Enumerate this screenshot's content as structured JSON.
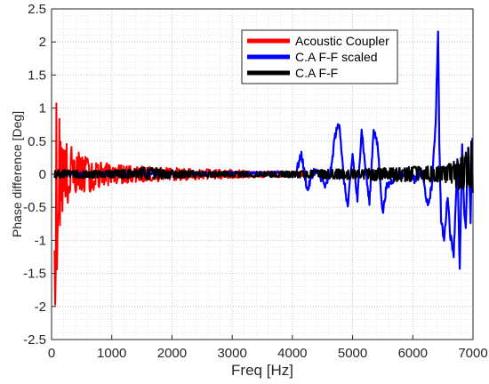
{
  "chart_data": {
    "type": "line",
    "title": "",
    "xlabel": "Freq [Hz]",
    "ylabel": "Phase difference [Deg]",
    "xlim": [
      0,
      7000
    ],
    "ylim": [
      -2.5,
      2.5
    ],
    "x_ticks": [
      0,
      1000,
      2000,
      3000,
      4000,
      5000,
      6000,
      7000
    ],
    "x_tick_labels": [
      "0",
      "1000",
      "2000",
      "3000",
      "4000",
      "5000",
      "6000",
      "7000"
    ],
    "y_ticks": [
      2.5,
      2,
      1.5,
      1,
      0.5,
      0,
      -0.5,
      -1,
      -1.5,
      -2,
      -2.5
    ],
    "y_tick_labels": [
      "2.5",
      "2",
      "1.5",
      "1",
      "0.5",
      "0",
      "-0.5",
      "-1",
      "-1.5",
      "-2",
      "-2.5"
    ],
    "grid": "major and minor, dotted",
    "legend_position": "top-right",
    "series": [
      {
        "name": "Acoustic Coupler",
        "color": "#ff0000",
        "envelope": [
          {
            "x": 50,
            "high": 0.95,
            "low": -2.1
          },
          {
            "x": 100,
            "high": 1.3,
            "low": -1.5
          },
          {
            "x": 150,
            "high": 0.75,
            "low": -0.7
          },
          {
            "x": 200,
            "high": 0.55,
            "low": -0.55
          },
          {
            "x": 300,
            "high": 0.45,
            "low": -0.45
          },
          {
            "x": 400,
            "high": 0.38,
            "low": -0.3
          },
          {
            "x": 500,
            "high": 0.3,
            "low": -0.3
          },
          {
            "x": 700,
            "high": 0.22,
            "low": -0.25
          },
          {
            "x": 1000,
            "high": 0.15,
            "low": -0.15
          },
          {
            "x": 1500,
            "high": 0.12,
            "low": -0.12
          },
          {
            "x": 2000,
            "high": 0.1,
            "low": -0.1
          },
          {
            "x": 2500,
            "high": 0.08,
            "low": -0.08
          },
          {
            "x": 3000,
            "high": 0.07,
            "low": -0.06
          },
          {
            "x": 3500,
            "high": 0.05,
            "low": -0.05
          },
          {
            "x": 4000,
            "high": 0.05,
            "low": -0.04
          },
          {
            "x": 4200,
            "high": 0.03,
            "low": -0.03
          }
        ]
      },
      {
        "name": "C.A F-F scaled",
        "color": "#0000ff",
        "x": [
          50,
          500,
          1000,
          2000,
          3000,
          3800,
          4050,
          4150,
          4250,
          4350,
          4450,
          4550,
          4650,
          4700,
          4780,
          4850,
          4920,
          5000,
          5080,
          5150,
          5200,
          5280,
          5350,
          5420,
          5500,
          5560,
          5650,
          5750,
          5850,
          5950,
          6050,
          6150,
          6250,
          6320,
          6380,
          6420,
          6440,
          6470,
          6520,
          6580,
          6620,
          6680,
          6740,
          6780,
          6820,
          6850,
          6880,
          6920,
          6960,
          6990
        ],
        "y": [
          0,
          0.01,
          0.01,
          0.01,
          0.02,
          0.02,
          0,
          0.3,
          -0.25,
          0.05,
          0,
          -0.2,
          0.1,
          0.55,
          0.8,
          -0.05,
          -0.5,
          0.3,
          -0.4,
          0.7,
          0.2,
          -0.45,
          0.7,
          0.4,
          -0.6,
          -0.2,
          -0.1,
          0,
          0,
          0,
          -0.1,
          0.05,
          -0.5,
          -0.15,
          0.8,
          2.2,
          0.5,
          -0.7,
          -1.0,
          -0.3,
          -0.9,
          -1.2,
          0.2,
          -1.45,
          0.4,
          -0.5,
          -0.8,
          0.45,
          -0.7,
          0.55
        ]
      },
      {
        "name": "C.A F-F",
        "color": "#000000",
        "envelope": [
          {
            "x": 50,
            "high": 0.05,
            "low": -0.08
          },
          {
            "x": 100,
            "high": 0.07,
            "low": -0.06
          },
          {
            "x": 500,
            "high": 0.06,
            "low": -0.06
          },
          {
            "x": 1000,
            "high": 0.06,
            "low": -0.06
          },
          {
            "x": 1600,
            "high": 0.12,
            "low": -0.08
          },
          {
            "x": 2000,
            "high": 0.06,
            "low": -0.06
          },
          {
            "x": 3000,
            "high": 0.04,
            "low": -0.04
          },
          {
            "x": 4000,
            "high": 0.05,
            "low": -0.05
          },
          {
            "x": 4500,
            "high": 0.07,
            "low": -0.07
          },
          {
            "x": 5000,
            "high": 0.08,
            "low": -0.08
          },
          {
            "x": 5500,
            "high": 0.1,
            "low": -0.1
          },
          {
            "x": 6000,
            "high": 0.12,
            "low": -0.12
          },
          {
            "x": 6500,
            "high": 0.12,
            "low": -0.12
          },
          {
            "x": 6800,
            "high": 0.25,
            "low": -0.25
          },
          {
            "x": 6950,
            "high": 0.6,
            "low": -0.2
          },
          {
            "x": 7000,
            "high": 0.45,
            "low": -0.45
          }
        ]
      }
    ]
  }
}
